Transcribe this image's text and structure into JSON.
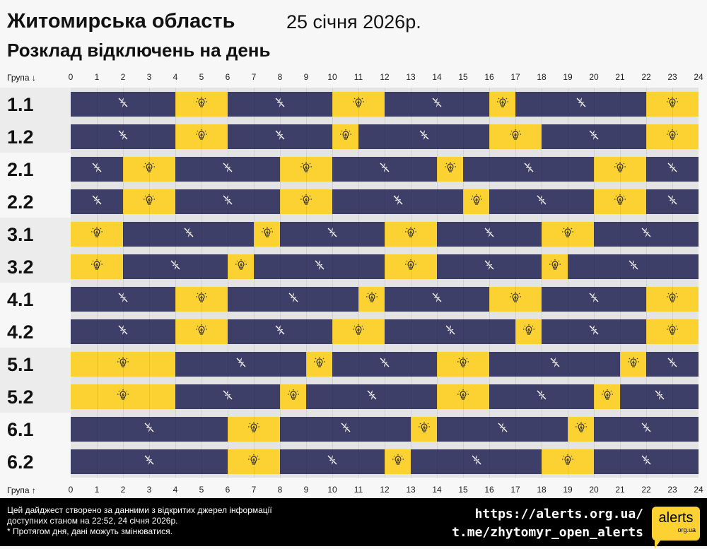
{
  "header": {
    "title": "Житомирська область",
    "date": "25 січня 2026р.",
    "subtitle": "Розклад відключень на день"
  },
  "axis": {
    "top_label": "Група ↓",
    "bottom_label": "Група ↑",
    "hours": [
      "0",
      "1",
      "2",
      "3",
      "4",
      "5",
      "6",
      "7",
      "8",
      "9",
      "10",
      "11",
      "12",
      "13",
      "14",
      "15",
      "16",
      "17",
      "18",
      "19",
      "20",
      "21",
      "22",
      "23",
      "24"
    ]
  },
  "colors": {
    "off": "#3d3f68",
    "on": "#fcd232"
  },
  "icons": {
    "off": "lightning-off-icon",
    "on": "lightbulb-icon"
  },
  "groups": [
    {
      "name": "1.1",
      "segments": [
        [
          "off",
          0,
          4
        ],
        [
          "on",
          4,
          6
        ],
        [
          "off",
          6,
          10
        ],
        [
          "on",
          10,
          12
        ],
        [
          "off",
          12,
          16
        ],
        [
          "on",
          16,
          17
        ],
        [
          "off",
          17,
          22
        ],
        [
          "on",
          22,
          24
        ]
      ]
    },
    {
      "name": "1.2",
      "segments": [
        [
          "off",
          0,
          4
        ],
        [
          "on",
          4,
          6
        ],
        [
          "off",
          6,
          10
        ],
        [
          "on",
          10,
          11
        ],
        [
          "off",
          11,
          16
        ],
        [
          "on",
          16,
          18
        ],
        [
          "off",
          18,
          22
        ],
        [
          "on",
          22,
          24
        ]
      ]
    },
    {
      "name": "2.1",
      "segments": [
        [
          "off",
          0,
          2
        ],
        [
          "on",
          2,
          4
        ],
        [
          "off",
          4,
          8
        ],
        [
          "on",
          8,
          10
        ],
        [
          "off",
          10,
          14
        ],
        [
          "on",
          14,
          15
        ],
        [
          "off",
          15,
          20
        ],
        [
          "on",
          20,
          22
        ],
        [
          "off",
          22,
          24
        ]
      ]
    },
    {
      "name": "2.2",
      "segments": [
        [
          "off",
          0,
          2
        ],
        [
          "on",
          2,
          4
        ],
        [
          "off",
          4,
          8
        ],
        [
          "on",
          8,
          10
        ],
        [
          "off",
          10,
          15
        ],
        [
          "on",
          15,
          16
        ],
        [
          "off",
          16,
          20
        ],
        [
          "on",
          20,
          22
        ],
        [
          "off",
          22,
          24
        ]
      ]
    },
    {
      "name": "3.1",
      "segments": [
        [
          "on",
          0,
          2
        ],
        [
          "off",
          2,
          7
        ],
        [
          "on",
          7,
          8
        ],
        [
          "off",
          8,
          12
        ],
        [
          "on",
          12,
          14
        ],
        [
          "off",
          14,
          18
        ],
        [
          "on",
          18,
          20
        ],
        [
          "off",
          20,
          24
        ]
      ]
    },
    {
      "name": "3.2",
      "segments": [
        [
          "on",
          0,
          2
        ],
        [
          "off",
          2,
          6
        ],
        [
          "on",
          6,
          7
        ],
        [
          "off",
          7,
          12
        ],
        [
          "on",
          12,
          14
        ],
        [
          "off",
          14,
          18
        ],
        [
          "on",
          18,
          19
        ],
        [
          "off",
          19,
          24
        ]
      ]
    },
    {
      "name": "4.1",
      "segments": [
        [
          "off",
          0,
          4
        ],
        [
          "on",
          4,
          6
        ],
        [
          "off",
          6,
          11
        ],
        [
          "on",
          11,
          12
        ],
        [
          "off",
          12,
          16
        ],
        [
          "on",
          16,
          18
        ],
        [
          "off",
          18,
          22
        ],
        [
          "on",
          22,
          24
        ]
      ]
    },
    {
      "name": "4.2",
      "segments": [
        [
          "off",
          0,
          4
        ],
        [
          "on",
          4,
          6
        ],
        [
          "off",
          6,
          10
        ],
        [
          "on",
          10,
          12
        ],
        [
          "off",
          12,
          17
        ],
        [
          "on",
          17,
          18
        ],
        [
          "off",
          18,
          22
        ],
        [
          "on",
          22,
          24
        ]
      ]
    },
    {
      "name": "5.1",
      "segments": [
        [
          "on",
          0,
          4
        ],
        [
          "off",
          4,
          9
        ],
        [
          "on",
          9,
          10
        ],
        [
          "off",
          10,
          14
        ],
        [
          "on",
          14,
          16
        ],
        [
          "off",
          16,
          21
        ],
        [
          "on",
          21,
          22
        ],
        [
          "off",
          22,
          24
        ]
      ]
    },
    {
      "name": "5.2",
      "segments": [
        [
          "on",
          0,
          4
        ],
        [
          "off",
          4,
          8
        ],
        [
          "on",
          8,
          9
        ],
        [
          "off",
          9,
          14
        ],
        [
          "on",
          14,
          16
        ],
        [
          "off",
          16,
          20
        ],
        [
          "on",
          20,
          21
        ],
        [
          "off",
          21,
          24
        ]
      ]
    },
    {
      "name": "6.1",
      "segments": [
        [
          "off",
          0,
          6
        ],
        [
          "on",
          6,
          8
        ],
        [
          "off",
          8,
          13
        ],
        [
          "on",
          13,
          14
        ],
        [
          "off",
          14,
          19
        ],
        [
          "on",
          19,
          20
        ],
        [
          "off",
          20,
          24
        ]
      ]
    },
    {
      "name": "6.2",
      "segments": [
        [
          "off",
          0,
          6
        ],
        [
          "on",
          6,
          8
        ],
        [
          "off",
          8,
          12
        ],
        [
          "on",
          12,
          13
        ],
        [
          "off",
          13,
          18
        ],
        [
          "on",
          18,
          20
        ],
        [
          "off",
          20,
          24
        ]
      ]
    }
  ],
  "footer": {
    "note_lines": [
      "Цей дайджест створено за данними з відкритих джерел інформації",
      "доступних станом на 22:52, 24 січня 2026р.",
      "* Протягом дня, дані можуть змінюватися."
    ],
    "link1": "https://alerts.org.ua/",
    "link2": "t.me/zhytomyr_open_alerts",
    "logo_text": "alerts",
    "logo_sub": "org.ua"
  }
}
